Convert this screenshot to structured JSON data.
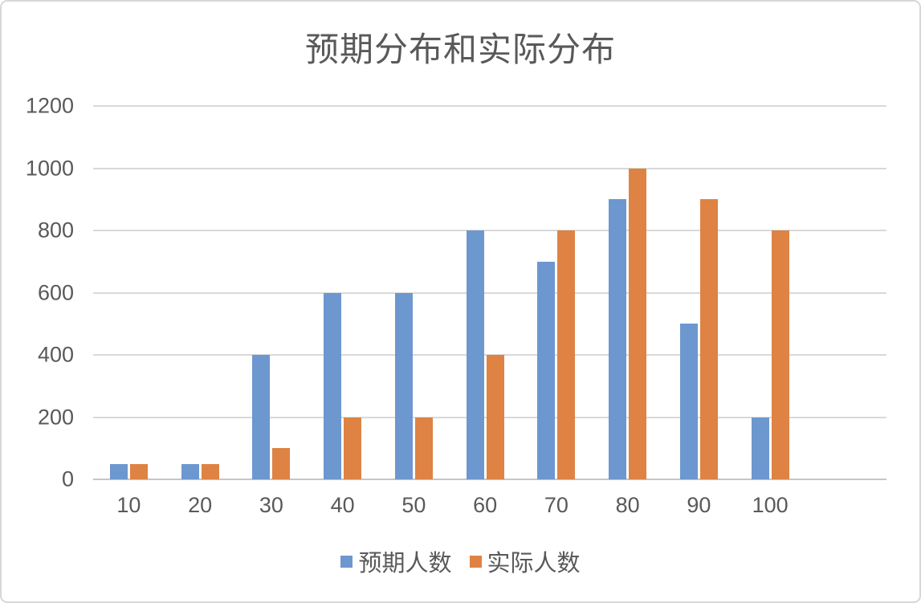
{
  "chart_data": {
    "type": "bar",
    "title": "预期分布和实际分布",
    "categories": [
      "10",
      "20",
      "30",
      "40",
      "50",
      "60",
      "70",
      "80",
      "90",
      "100"
    ],
    "series": [
      {
        "name": "预期人数",
        "color": "#6d97cf",
        "values": [
          50,
          50,
          400,
          600,
          600,
          800,
          700,
          900,
          500,
          200
        ]
      },
      {
        "name": "实际人数",
        "color": "#de8344",
        "values": [
          50,
          50,
          100,
          200,
          200,
          400,
          800,
          1000,
          900,
          800
        ]
      }
    ],
    "xlabel": "",
    "ylabel": "",
    "ylim": [
      0,
      1200
    ],
    "yticks": [
      0,
      200,
      400,
      600,
      800,
      1000,
      1200
    ],
    "grid": "horizontal",
    "legend_position": "bottom",
    "colors": {
      "text": "#595959",
      "gridline": "#d9d9d9",
      "axis_line": "#c6c6c6",
      "frame_border": "#d7d7d7",
      "background": "#ffffff"
    }
  }
}
